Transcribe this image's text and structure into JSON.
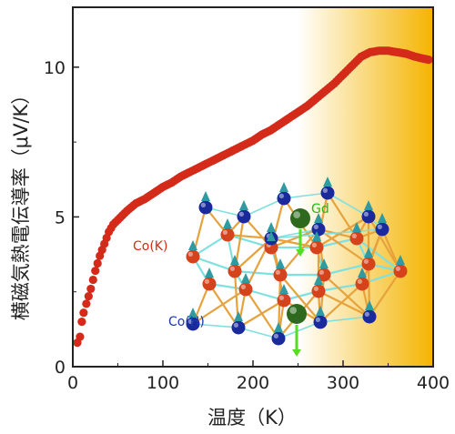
{
  "chart_data": {
    "type": "scatter",
    "xlabel": "温度（K）",
    "ylabel": "横磁気熱電伝導率（μV/K）",
    "xlim": [
      0,
      400
    ],
    "ylim": [
      0,
      12
    ],
    "x_ticks": [
      "0",
      "100",
      "200",
      "300",
      "400"
    ],
    "y_ticks": [
      "0",
      "5",
      "10"
    ],
    "x_tick_values": [
      0,
      100,
      200,
      300,
      400
    ],
    "y_tick_values": [
      0,
      5,
      10
    ],
    "grid": false,
    "marker_color": "#d42a1a",
    "background_gradient": {
      "from_color": "#ffffff",
      "to_color": "#f4b400",
      "start_x": 250,
      "end_x": 400
    },
    "series": [
      {
        "points": [
          [
            5,
            0.8
          ],
          [
            8,
            1.0
          ],
          [
            10,
            1.5
          ],
          [
            12,
            1.8
          ],
          [
            15,
            2.1
          ],
          [
            20,
            2.6
          ],
          [
            25,
            3.2
          ],
          [
            30,
            3.7
          ],
          [
            35,
            4.1
          ],
          [
            40,
            4.5
          ],
          [
            45,
            4.75
          ],
          [
            50,
            4.9
          ],
          [
            55,
            5.05
          ],
          [
            60,
            5.2
          ],
          [
            70,
            5.45
          ],
          [
            80,
            5.6
          ],
          [
            90,
            5.8
          ],
          [
            100,
            6.0
          ],
          [
            110,
            6.15
          ],
          [
            120,
            6.35
          ],
          [
            130,
            6.5
          ],
          [
            140,
            6.65
          ],
          [
            150,
            6.8
          ],
          [
            160,
            6.95
          ],
          [
            170,
            7.1
          ],
          [
            180,
            7.25
          ],
          [
            190,
            7.4
          ],
          [
            200,
            7.55
          ],
          [
            210,
            7.75
          ],
          [
            220,
            7.9
          ],
          [
            230,
            8.1
          ],
          [
            240,
            8.3
          ],
          [
            250,
            8.5
          ],
          [
            260,
            8.7
          ],
          [
            270,
            8.95
          ],
          [
            280,
            9.2
          ],
          [
            290,
            9.45
          ],
          [
            300,
            9.75
          ],
          [
            310,
            10.05
          ],
          [
            320,
            10.35
          ],
          [
            330,
            10.5
          ],
          [
            340,
            10.55
          ],
          [
            350,
            10.55
          ],
          [
            360,
            10.5
          ],
          [
            370,
            10.45
          ],
          [
            380,
            10.35
          ],
          [
            390,
            10.28
          ],
          [
            395,
            10.25
          ]
        ]
      }
    ]
  },
  "inset": {
    "atom_label_gd": "Gd",
    "atom_label_cok": "Co(K)",
    "atom_label_coh": "Co(H)",
    "color_gd": "#2d6a1e",
    "color_cok": "#d4431c",
    "color_coh": "#1a2a9c",
    "color_bond": "#e6a23c",
    "color_bond_cyan": "#7fe0e0",
    "color_arrow": "#55dd22",
    "color_spin_cone": "#2f9aa0",
    "color_label_gd": "#22bb11",
    "color_label_cok": "#d62b13",
    "color_label_coh": "#1a3aa8"
  }
}
